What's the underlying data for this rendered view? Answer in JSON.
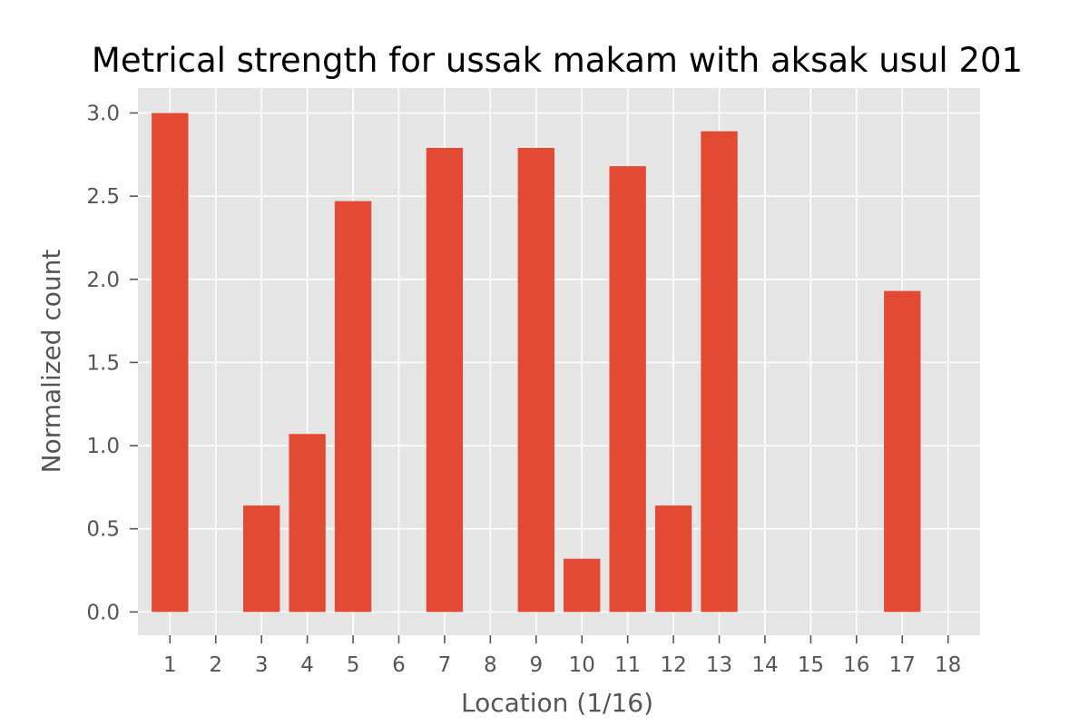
{
  "chart_data": {
    "type": "bar",
    "title": "Metrical strength for ussak makam with aksak usul 201",
    "xlabel": "Location (1/16)",
    "ylabel": "Normalized count",
    "categories": [
      "1",
      "2",
      "3",
      "4",
      "5",
      "6",
      "7",
      "8",
      "9",
      "10",
      "11",
      "12",
      "13",
      "14",
      "15",
      "16",
      "17",
      "18"
    ],
    "values": [
      3.0,
      0,
      0.64,
      1.07,
      2.47,
      0,
      2.79,
      0,
      2.79,
      0.32,
      2.68,
      0.64,
      2.89,
      0,
      0,
      0,
      1.93,
      0
    ],
    "ylim": [
      -0.14,
      3.15
    ],
    "yticks": [
      0.0,
      0.5,
      1.0,
      1.5,
      2.0,
      2.5,
      3.0
    ],
    "ytick_labels": [
      "0.0",
      "0.5",
      "1.0",
      "1.5",
      "2.0",
      "2.5",
      "3.0"
    ],
    "xlim": [
      0.3,
      18.7
    ],
    "grid": true,
    "colors": {
      "bar": "#E24A33",
      "background": "#E5E5E5",
      "grid": "#FFFFFF",
      "tick": "#555555"
    }
  }
}
